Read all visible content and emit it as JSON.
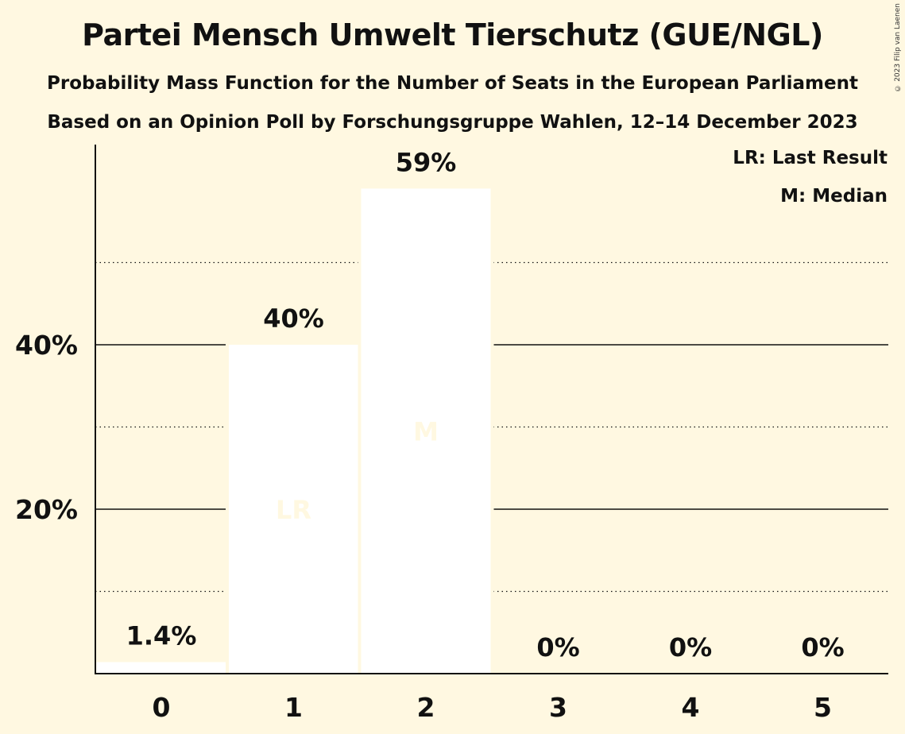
{
  "chart_data": {
    "type": "bar",
    "title": "Partei Mensch Umwelt Tierschutz (GUE/NGL)",
    "subtitle": "Probability Mass Function for the Number of Seats in the European Parliament",
    "subtitle2": "Based on an Opinion Poll by Forschungsgruppe Wahlen, 12–14 December 2023",
    "copyright": "© 2023 Filip van Laenen",
    "categories": [
      "0",
      "1",
      "2",
      "3",
      "4",
      "5"
    ],
    "values": [
      1.4,
      40,
      59,
      0,
      0,
      0
    ],
    "value_labels": [
      "1.4%",
      "40%",
      "59%",
      "0%",
      "0%",
      "0%"
    ],
    "bar_markers": [
      "",
      "LR",
      "M",
      "",
      "",
      ""
    ],
    "y_ticks": [
      20,
      40
    ],
    "y_tick_labels": [
      "20%",
      "40%"
    ],
    "minor_gridlines": [
      10,
      30,
      50
    ],
    "ylim": [
      0,
      64
    ],
    "legend": {
      "lr": "LR: Last Result",
      "m": "M: Median",
      "position": "top-right"
    },
    "colors": {
      "background": "#FFF8E1",
      "bar": "#FFFFFF",
      "marker_text": "#FFF8E1",
      "text": "#111111"
    }
  }
}
